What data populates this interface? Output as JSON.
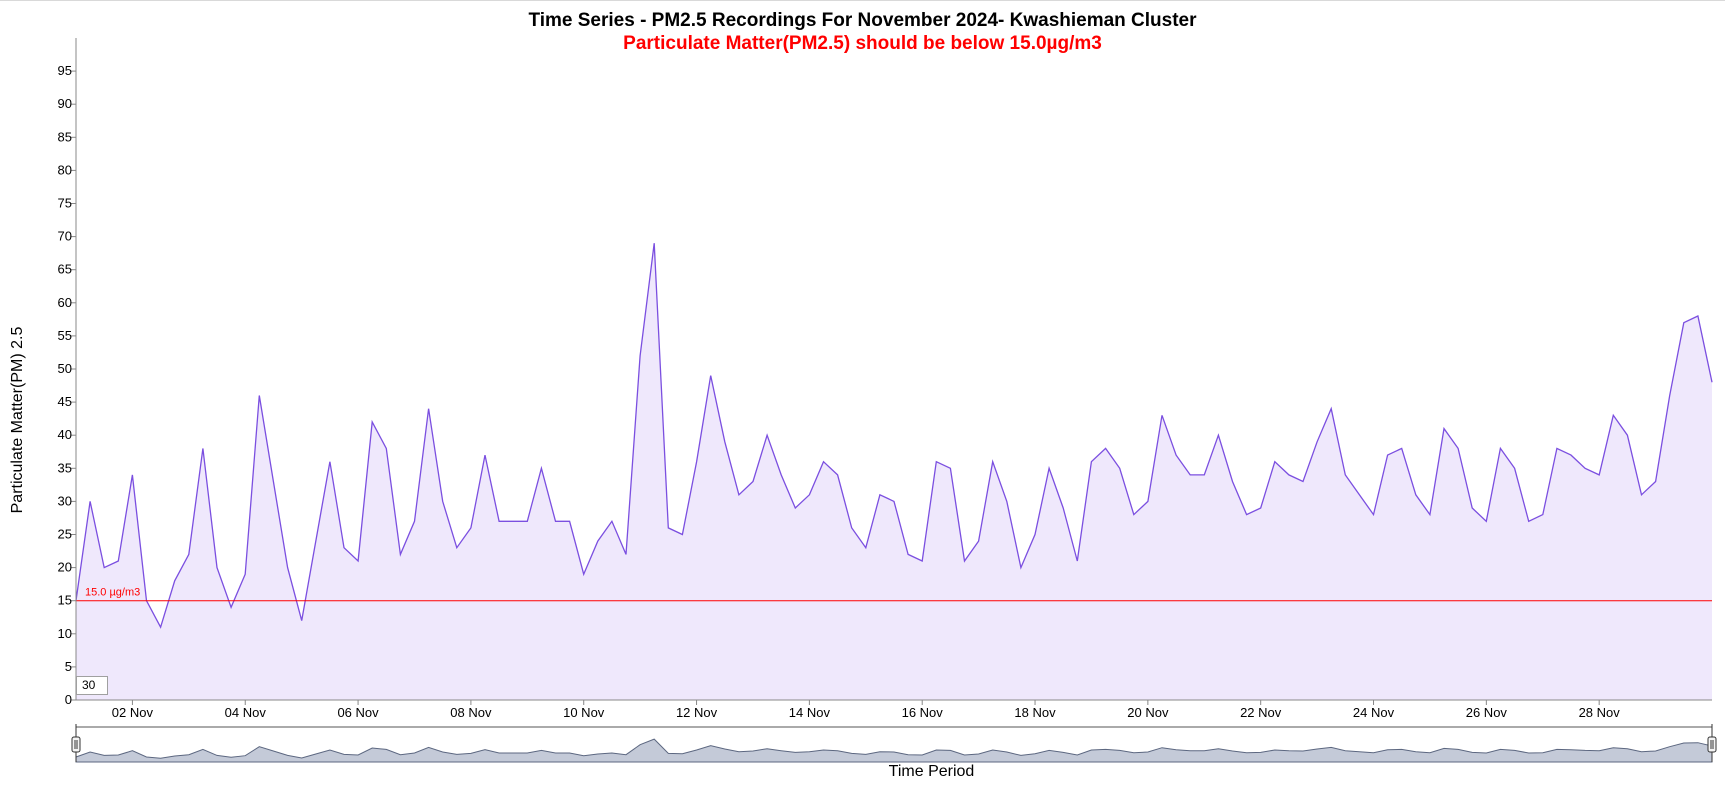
{
  "chart_data": {
    "type": "area",
    "title": "Time Series - PM2.5 Recordings For November 2024- Kwashieman Cluster",
    "subtitle": "Particulate Matter(PM2.5) should be below 15.0µg/m3",
    "xlabel": "Time Period",
    "ylabel": "Particulate Matter(PM) 2.5",
    "ylim": [
      0,
      100
    ],
    "yticks": [
      0,
      5,
      10,
      15,
      20,
      25,
      30,
      35,
      40,
      45,
      50,
      55,
      60,
      65,
      70,
      75,
      80,
      85,
      90,
      95
    ],
    "x_range": [
      "2024-11-01",
      "2024-11-30"
    ],
    "xtick_labels": [
      "02 Nov",
      "04 Nov",
      "06 Nov",
      "08 Nov",
      "10 Nov",
      "12 Nov",
      "14 Nov",
      "16 Nov",
      "18 Nov",
      "20 Nov",
      "22 Nov",
      "24 Nov",
      "26 Nov",
      "28 Nov"
    ],
    "threshold": {
      "value": 15.0,
      "label": "15.0 µg/m3",
      "color": "#ff0000"
    },
    "rolling_period": "30",
    "grid": false,
    "series": [
      {
        "color": "#7b4fe0",
        "fill": "#efe8fc",
        "x": [
          "2024-11-01",
          "2024-11-01T06",
          "2024-11-01T12",
          "2024-11-01T18",
          "2024-11-02",
          "2024-11-02T06",
          "2024-11-02T12",
          "2024-11-02T18",
          "2024-11-03",
          "2024-11-03T06",
          "2024-11-03T12",
          "2024-11-03T18",
          "2024-11-04",
          "2024-11-04T06",
          "2024-11-04T12",
          "2024-11-04T18",
          "2024-11-05",
          "2024-11-05T06",
          "2024-11-05T12",
          "2024-11-05T18",
          "2024-11-06",
          "2024-11-06T06",
          "2024-11-06T12",
          "2024-11-06T18",
          "2024-11-07",
          "2024-11-07T06",
          "2024-11-07T12",
          "2024-11-07T18",
          "2024-11-08",
          "2024-11-08T06",
          "2024-11-08T12",
          "2024-11-08T18",
          "2024-11-09",
          "2024-11-09T06",
          "2024-11-09T12",
          "2024-11-09T18",
          "2024-11-10",
          "2024-11-10T06",
          "2024-11-10T12",
          "2024-11-10T18",
          "2024-11-11",
          "2024-11-11T06",
          "2024-11-11T12",
          "2024-11-11T18",
          "2024-11-12",
          "2024-11-12T06",
          "2024-11-12T12",
          "2024-11-12T18",
          "2024-11-13",
          "2024-11-13T06",
          "2024-11-13T12",
          "2024-11-13T18",
          "2024-11-14",
          "2024-11-14T06",
          "2024-11-14T12",
          "2024-11-14T18",
          "2024-11-15",
          "2024-11-15T06",
          "2024-11-15T12",
          "2024-11-15T18",
          "2024-11-16",
          "2024-11-16T06",
          "2024-11-16T12",
          "2024-11-16T18",
          "2024-11-17",
          "2024-11-17T06",
          "2024-11-17T12",
          "2024-11-17T18",
          "2024-11-18",
          "2024-11-18T06",
          "2024-11-18T12",
          "2024-11-18T18",
          "2024-11-19",
          "2024-11-19T06",
          "2024-11-19T12",
          "2024-11-19T18",
          "2024-11-20",
          "2024-11-20T06",
          "2024-11-20T12",
          "2024-11-20T18",
          "2024-11-21",
          "2024-11-21T06",
          "2024-11-21T12",
          "2024-11-21T18",
          "2024-11-22",
          "2024-11-22T06",
          "2024-11-22T12",
          "2024-11-22T18",
          "2024-11-23",
          "2024-11-23T06",
          "2024-11-23T12",
          "2024-11-23T18",
          "2024-11-24",
          "2024-11-24T06",
          "2024-11-24T12",
          "2024-11-24T18",
          "2024-11-25",
          "2024-11-25T06",
          "2024-11-25T12",
          "2024-11-25T18",
          "2024-11-26",
          "2024-11-26T06",
          "2024-11-26T12",
          "2024-11-26T18",
          "2024-11-27",
          "2024-11-27T06",
          "2024-11-27T12",
          "2024-11-27T18",
          "2024-11-28",
          "2024-11-28T06",
          "2024-11-28T12",
          "2024-11-28T18",
          "2024-11-29",
          "2024-11-29T06",
          "2024-11-29T12",
          "2024-11-29T18",
          "2024-11-30"
        ],
        "values": [
          15,
          30,
          20,
          21,
          34,
          15,
          11,
          18,
          22,
          38,
          20,
          14,
          19,
          46,
          33,
          20,
          12,
          24,
          36,
          23,
          21,
          42,
          38,
          22,
          27,
          44,
          30,
          23,
          26,
          37,
          27,
          27,
          27,
          35,
          27,
          27,
          19,
          24,
          27,
          22,
          52,
          69,
          26,
          25,
          36,
          49,
          39,
          31,
          33,
          40,
          34,
          29,
          31,
          36,
          34,
          26,
          23,
          31,
          30,
          22,
          21,
          36,
          35,
          21,
          24,
          36,
          30,
          20,
          25,
          35,
          29,
          21,
          36,
          38,
          35,
          28,
          30,
          43,
          37,
          34,
          34,
          40,
          33,
          28,
          29,
          36,
          34,
          33,
          39,
          44,
          34,
          31,
          28,
          37,
          38,
          31,
          28,
          41,
          38,
          29,
          27,
          38,
          35,
          27,
          28,
          38,
          37,
          35,
          34,
          43,
          40,
          31,
          33,
          46,
          57,
          58,
          48
        ]
      }
    ]
  }
}
